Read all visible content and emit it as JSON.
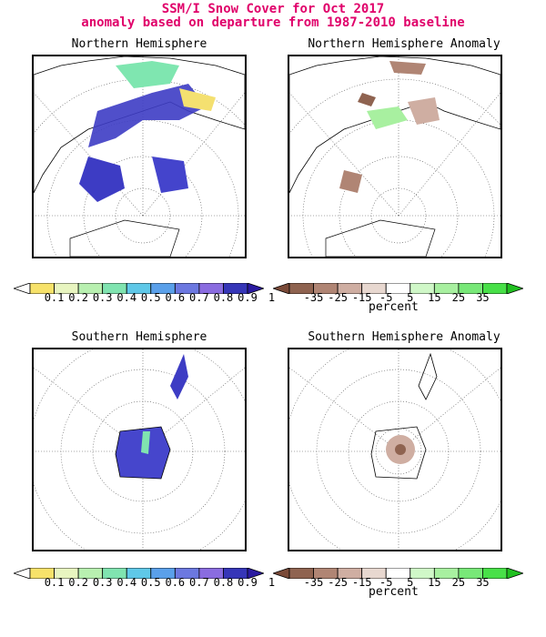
{
  "title": {
    "line1": "SSM/I Snow Cover for Oct 2017",
    "line2": "anomaly based on departure from 1987-2010 baseline"
  },
  "panels": {
    "nh": {
      "title": "Northern Hemisphere"
    },
    "nh_anom": {
      "title": "Northern Hemisphere Anomaly"
    },
    "sh": {
      "title": "Southern Hemisphere"
    },
    "sh_anom": {
      "title": "Southern Hemisphere Anomaly"
    }
  },
  "colorbars": {
    "cover": {
      "labels": [
        "0.1",
        "0.2",
        "0.3",
        "0.4",
        "0.5",
        "0.6",
        "0.7",
        "0.8",
        "0.9",
        "1"
      ],
      "colors": [
        "#ffffff",
        "#f7e26a",
        "#e8f5c0",
        "#b8f0b0",
        "#80e4b0",
        "#5fc8e8",
        "#5aa0ea",
        "#6c78e0",
        "#8a6ce0",
        "#3636b8",
        "#2a1aa0"
      ]
    },
    "anomaly": {
      "labels": [
        "-35",
        "-25",
        "-15",
        "-5",
        "5",
        "15",
        "25",
        "35"
      ],
      "unit": "percent",
      "colors": [
        "#7a4a38",
        "#8f6350",
        "#b08574",
        "#cfaea2",
        "#e8d8d0",
        "#ffffff",
        "#d0f8c8",
        "#a8f0a0",
        "#78e878",
        "#48e048",
        "#20c020"
      ]
    }
  }
}
